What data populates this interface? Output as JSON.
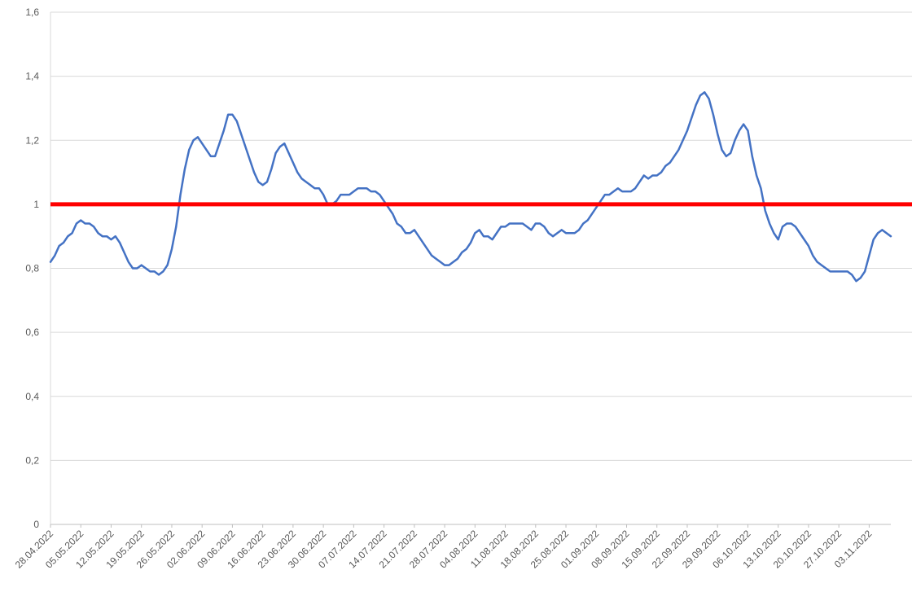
{
  "chart_data": {
    "type": "line",
    "title": "",
    "xlabel": "",
    "ylabel": "",
    "ylim": [
      0,
      1.6
    ],
    "y_ticks": [
      0,
      0.2,
      0.4,
      0.6,
      0.8,
      1,
      1.2,
      1.4,
      1.6
    ],
    "y_tick_labels": [
      "0",
      "0,2",
      "0,4",
      "0,6",
      "0,8",
      "1",
      "1,2",
      "1,4",
      "1,6"
    ],
    "x_tick_labels": [
      "28.04.2022",
      "05.05.2022",
      "12.05.2022",
      "19.05.2022",
      "26.05.2022",
      "02.06.2022",
      "09.06.2022",
      "16.06.2022",
      "23.06.2022",
      "30.06.2022",
      "07.07.2022",
      "14.07.2022",
      "21.07.2022",
      "28.07.2022",
      "04.08.2022",
      "11.08.2022",
      "18.08.2022",
      "25.08.2022",
      "01.09.2022",
      "08.09.2022",
      "15.09.2022",
      "22.09.2022",
      "29.09.2022",
      "06.10.2022",
      "13.10.2022",
      "20.10.2022",
      "27.10.2022",
      "03.11.2022"
    ],
    "grid": "horizontal",
    "reference_line": {
      "value": 1,
      "color": "#ff0000"
    },
    "series_color": "#4472c4",
    "series": [
      {
        "values": [
          0.82,
          0.84,
          0.87,
          0.88,
          0.9,
          0.91,
          0.94,
          0.95,
          0.94,
          0.94,
          0.93,
          0.91,
          0.9,
          0.9,
          0.89,
          0.9,
          0.88,
          0.85,
          0.82,
          0.8,
          0.8,
          0.81,
          0.8,
          0.79,
          0.79,
          0.78,
          0.79,
          0.81,
          0.86,
          0.93,
          1.03,
          1.11,
          1.17,
          1.2,
          1.21,
          1.19,
          1.17,
          1.15,
          1.15,
          1.19,
          1.23,
          1.28,
          1.28,
          1.26,
          1.22,
          1.18,
          1.14,
          1.1,
          1.07,
          1.06,
          1.07,
          1.11,
          1.16,
          1.18,
          1.19,
          1.16,
          1.13,
          1.1,
          1.08,
          1.07,
          1.06,
          1.05,
          1.05,
          1.03,
          1.0,
          1.0,
          1.01,
          1.03,
          1.03,
          1.03,
          1.04,
          1.05,
          1.05,
          1.05,
          1.04,
          1.04,
          1.03,
          1.01,
          0.99,
          0.97,
          0.94,
          0.93,
          0.91,
          0.91,
          0.92,
          0.9,
          0.88,
          0.86,
          0.84,
          0.83,
          0.82,
          0.81,
          0.81,
          0.82,
          0.83,
          0.85,
          0.86,
          0.88,
          0.91,
          0.92,
          0.9,
          0.9,
          0.89,
          0.91,
          0.93,
          0.93,
          0.94,
          0.94,
          0.94,
          0.94,
          0.93,
          0.92,
          0.94,
          0.94,
          0.93,
          0.91,
          0.9,
          0.91,
          0.92,
          0.91,
          0.91,
          0.91,
          0.92,
          0.94,
          0.95,
          0.97,
          0.99,
          1.01,
          1.03,
          1.03,
          1.04,
          1.05,
          1.04,
          1.04,
          1.04,
          1.05,
          1.07,
          1.09,
          1.08,
          1.09,
          1.09,
          1.1,
          1.12,
          1.13,
          1.15,
          1.17,
          1.2,
          1.23,
          1.27,
          1.31,
          1.34,
          1.35,
          1.33,
          1.28,
          1.22,
          1.17,
          1.15,
          1.16,
          1.2,
          1.23,
          1.25,
          1.23,
          1.15,
          1.09,
          1.05,
          0.98,
          0.94,
          0.91,
          0.89,
          0.93,
          0.94,
          0.94,
          0.93,
          0.91,
          0.89,
          0.87,
          0.84,
          0.82,
          0.81,
          0.8,
          0.79,
          0.79,
          0.79,
          0.79,
          0.79,
          0.78,
          0.76,
          0.77,
          0.79,
          0.84,
          0.89,
          0.91,
          0.92,
          0.91,
          0.9
        ]
      }
    ]
  }
}
